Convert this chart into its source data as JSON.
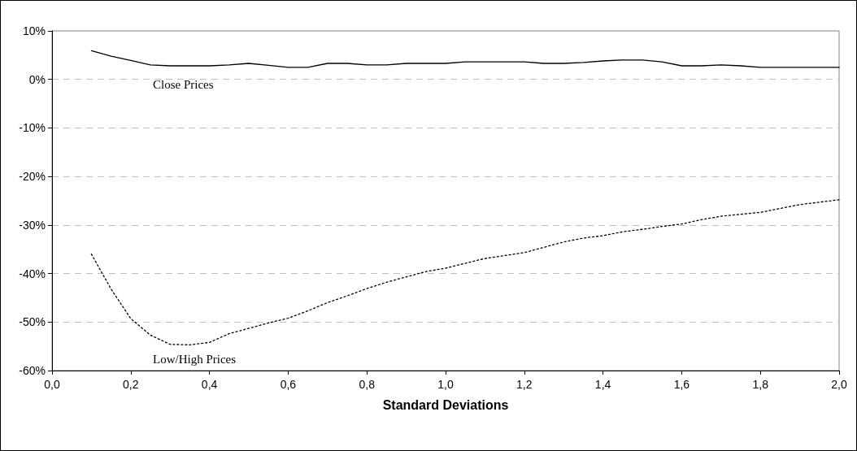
{
  "chart_data": {
    "type": "line",
    "xlabel": "Standard Deviations",
    "x": [
      0.1,
      0.15,
      0.2,
      0.25,
      0.3,
      0.35,
      0.4,
      0.45,
      0.5,
      0.55,
      0.6,
      0.65,
      0.7,
      0.75,
      0.8,
      0.85,
      0.9,
      0.95,
      1.0,
      1.05,
      1.1,
      1.15,
      1.2,
      1.25,
      1.3,
      1.35,
      1.4,
      1.45,
      1.5,
      1.55,
      1.6,
      1.65,
      1.7,
      1.75,
      1.8,
      1.85,
      1.9,
      1.95,
      2.0
    ],
    "series": [
      {
        "name": "Close Prices",
        "color": "#000000",
        "line_style": "solid",
        "values": [
          5.9,
          4.8,
          3.9,
          3.0,
          2.8,
          2.8,
          2.8,
          3.0,
          3.3,
          2.9,
          2.5,
          2.5,
          3.3,
          3.3,
          3.0,
          3.0,
          3.3,
          3.3,
          3.3,
          3.6,
          3.6,
          3.6,
          3.6,
          3.3,
          3.3,
          3.5,
          3.8,
          4.0,
          4.0,
          3.6,
          2.8,
          2.8,
          3.0,
          2.8,
          2.5,
          2.5,
          2.5,
          2.5,
          2.5
        ]
      },
      {
        "name": "Low/High Prices",
        "color": "#000000",
        "line_style": "dotted",
        "values": [
          -36,
          -43.2,
          -49.3,
          -52.7,
          -54.6,
          -54.7,
          -54.2,
          -52.4,
          -51.3,
          -50.2,
          -49.2,
          -47.7,
          -46,
          -44.6,
          -43.1,
          -41.8,
          -40.7,
          -39.6,
          -38.9,
          -37.9,
          -36.9,
          -36.3,
          -35.7,
          -34.6,
          -33.5,
          -32.7,
          -32.2,
          -31.4,
          -30.9,
          -30.3,
          -29.8,
          -28.9,
          -28.2,
          -27.8,
          -27.4,
          -26.6,
          -25.8,
          -25.3,
          -24.8
        ]
      }
    ],
    "xlim": [
      0,
      2
    ],
    "xticks": [
      {
        "value": 0,
        "label": "0,0"
      },
      {
        "value": 0.2,
        "label": "0,2"
      },
      {
        "value": 0.4,
        "label": "0,4"
      },
      {
        "value": 0.6,
        "label": "0,6"
      },
      {
        "value": 0.8,
        "label": "0,8"
      },
      {
        "value": 1,
        "label": "1,0"
      },
      {
        "value": 1.2,
        "label": "1,2"
      },
      {
        "value": 1.4,
        "label": "1,4"
      },
      {
        "value": 1.6,
        "label": "1,6"
      },
      {
        "value": 1.8,
        "label": "1,8"
      },
      {
        "value": 2,
        "label": "2,0"
      }
    ],
    "ylim": [
      -60,
      10
    ],
    "yticks": [
      {
        "value": -60,
        "label": "-60%"
      },
      {
        "value": -50,
        "label": "-50%"
      },
      {
        "value": -40,
        "label": "-40%"
      },
      {
        "value": -30,
        "label": "-30%"
      },
      {
        "value": -20,
        "label": "-20%"
      },
      {
        "value": -10,
        "label": "-10%"
      },
      {
        "value": 0,
        "label": "0%"
      },
      {
        "value": 10,
        "label": "10%"
      }
    ],
    "grid": "y",
    "legend": false,
    "marker": "none"
  }
}
